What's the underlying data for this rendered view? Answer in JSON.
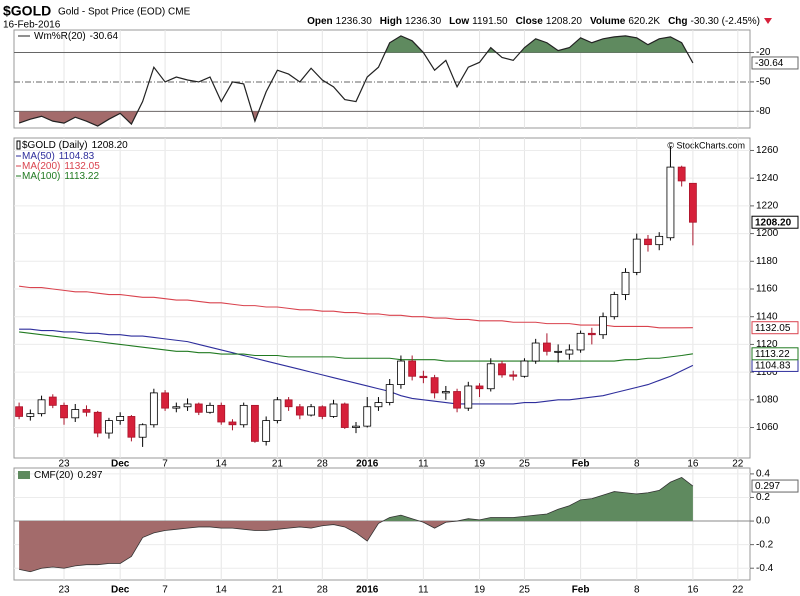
{
  "chart_data": [
    {
      "type": "line",
      "name": "Wm%R(20)",
      "ylim": [
        -97,
        3
      ],
      "yticks": [
        -20,
        -50,
        -80
      ],
      "color": "#222222",
      "fill_above": "#5f8a5f",
      "fill_below": "#a36b6b",
      "values": [
        -92,
        -88,
        -85,
        -90,
        -92,
        -86,
        -90,
        -95,
        -88,
        -82,
        -93,
        -70,
        -35,
        -50,
        -45,
        -48,
        -50,
        -45,
        -70,
        -50,
        -52,
        -90,
        -60,
        -38,
        -42,
        -50,
        -36,
        -48,
        -55,
        -68,
        -70,
        -45,
        -35,
        -10,
        -3,
        -8,
        -20,
        -38,
        -28,
        -55,
        -35,
        -30,
        -15,
        -25,
        -28,
        -15,
        -6,
        -10,
        -18,
        -15,
        -5,
        -10,
        -6,
        -4,
        -3,
        -5,
        -12,
        -6,
        -4,
        -10,
        -30.64,
        null,
        null,
        null,
        null,
        null
      ]
    },
    {
      "type": "candlestick",
      "title": "$GOLD",
      "subtitle": "Gold - Spot Price (EOD) CME",
      "date": "16-Feb-2016",
      "stats": [
        {
          "label": "Open",
          "value": "1236.30"
        },
        {
          "label": "High",
          "value": "1236.30"
        },
        {
          "label": "Low",
          "value": "1191.50"
        },
        {
          "label": "Close",
          "value": "1208.20"
        },
        {
          "label": "Volume",
          "value": "620.2K"
        },
        {
          "label": "Chg",
          "value": "-30.30 (-2.45%)"
        }
      ],
      "watermark": "© StockCharts.com",
      "name": "$GOLD (Daily)",
      "last_label": "1208.20",
      "categories": [
        null,
        null,
        null,
        null,
        "23",
        null,
        null,
        null,
        null,
        "Dec",
        null,
        null,
        null,
        "7",
        null,
        null,
        null,
        null,
        "14",
        null,
        null,
        null,
        null,
        "21",
        null,
        null,
        null,
        "28",
        null,
        null,
        null,
        "2016",
        null,
        null,
        null,
        null,
        "11",
        null,
        null,
        null,
        null,
        "19",
        null,
        null,
        null,
        "25",
        null,
        null,
        null,
        null,
        "Feb",
        null,
        null,
        null,
        null,
        "8",
        null,
        null,
        null,
        null,
        "16",
        null,
        null,
        null,
        "22",
        null
      ],
      "open": [
        1075,
        1068,
        1070,
        1082,
        1076,
        1067,
        1073,
        1071,
        1056,
        1065,
        1068,
        1053,
        1062,
        1085,
        1074,
        1075,
        1077,
        1071,
        1076,
        1064,
        1062,
        1076,
        1050,
        1065,
        1080,
        1075,
        1069,
        1075,
        1068,
        1077,
        1060,
        1061,
        1075,
        1078,
        1091,
        1108,
        1097,
        1096,
        1085,
        1086,
        1074,
        1090,
        1088,
        1106,
        1098,
        1097,
        1108,
        1121,
        1115,
        1113,
        1116,
        1128,
        1127,
        1140,
        1156,
        1172,
        1196,
        1192,
        1197,
        1248,
        1236.3,
        null,
        null,
        null,
        null,
        null
      ],
      "high": [
        1078,
        1073,
        1083,
        1084,
        1078,
        1077,
        1076,
        1072,
        1067,
        1071,
        1069,
        1063,
        1088,
        1087,
        1078,
        1081,
        1078,
        1078,
        1078,
        1066,
        1078,
        1076,
        1068,
        1082,
        1082,
        1077,
        1077,
        1076,
        1080,
        1078,
        1064,
        1082,
        1082,
        1095,
        1112,
        1112,
        1101,
        1098,
        1090,
        1088,
        1093,
        1092,
        1110,
        1108,
        1101,
        1110,
        1124,
        1128,
        1120,
        1120,
        1130,
        1132,
        1143,
        1158,
        1175,
        1200,
        1199,
        1201,
        1263,
        1249,
        1236.3,
        null,
        null,
        null,
        null,
        null
      ],
      "low": [
        1066,
        1065,
        1068,
        1074,
        1062,
        1064,
        1068,
        1053,
        1052,
        1062,
        1050,
        1046,
        1060,
        1072,
        1071,
        1072,
        1069,
        1070,
        1062,
        1058,
        1060,
        1049,
        1047,
        1063,
        1072,
        1066,
        1068,
        1066,
        1067,
        1059,
        1056,
        1060,
        1072,
        1076,
        1088,
        1094,
        1092,
        1081,
        1080,
        1071,
        1072,
        1082,
        1086,
        1096,
        1094,
        1096,
        1106,
        1112,
        1107,
        1109,
        1114,
        1120,
        1124,
        1138,
        1152,
        1170,
        1187,
        1188,
        1195,
        1234,
        1191.5,
        null,
        null,
        null,
        null,
        null
      ],
      "close": [
        1068,
        1070,
        1080,
        1076,
        1067,
        1073,
        1071,
        1056,
        1065,
        1068,
        1053,
        1062,
        1085,
        1074,
        1075,
        1077,
        1071,
        1076,
        1064,
        1062,
        1076,
        1050,
        1065,
        1080,
        1075,
        1069,
        1075,
        1068,
        1077,
        1060,
        1061,
        1075,
        1078,
        1091,
        1108,
        1097,
        1096,
        1085,
        1086,
        1074,
        1090,
        1088,
        1106,
        1098,
        1097,
        1108,
        1121,
        1115,
        1115,
        1116,
        1128,
        1127,
        1140,
        1156,
        1172,
        1196,
        1192,
        1198,
        1248,
        1238,
        1208.2,
        null,
        null,
        null,
        null,
        null
      ],
      "up_color": "#ffffff",
      "down_color": "#d6203a",
      "series": [
        {
          "name": "MA(50)",
          "color": "#2e2e9c",
          "values": [
            1131,
            1131,
            1130,
            1130,
            1129,
            1129,
            1128,
            1128,
            1127,
            1127,
            1126,
            1126,
            1125,
            1124,
            1123,
            1122,
            1120,
            1118,
            1116,
            1114,
            1112,
            1110,
            1108,
            1106,
            1104,
            1102,
            1100,
            1098,
            1096,
            1094,
            1092,
            1090,
            1088,
            1086,
            1083,
            1081,
            1080,
            1079,
            1078,
            1077,
            1077,
            1077,
            1077,
            1077,
            1077,
            1078,
            1078,
            1079,
            1080,
            1080,
            1081,
            1082,
            1083,
            1085,
            1087,
            1089,
            1091,
            1094,
            1097,
            1101,
            1104.83,
            null,
            null,
            null,
            null,
            null
          ]
        },
        {
          "name": "MA(200)",
          "color": "#d9434e",
          "values": [
            1162,
            1161,
            1161,
            1160,
            1159,
            1158,
            1158,
            1157,
            1156,
            1156,
            1155,
            1154,
            1154,
            1153,
            1152,
            1152,
            1151,
            1150,
            1150,
            1149,
            1148,
            1148,
            1147,
            1147,
            1146,
            1145,
            1145,
            1144,
            1144,
            1143,
            1143,
            1142,
            1142,
            1141,
            1141,
            1140,
            1140,
            1139,
            1139,
            1138,
            1138,
            1137,
            1137,
            1137,
            1136,
            1136,
            1136,
            1135,
            1135,
            1135,
            1134,
            1134,
            1134,
            1133,
            1133,
            1133,
            1133,
            1132,
            1132,
            1132,
            1132.05,
            null,
            null,
            null,
            null,
            null
          ]
        },
        {
          "name": "MA(100)",
          "color": "#217a21",
          "values": [
            1129,
            1128,
            1127,
            1126,
            1125,
            1124,
            1123,
            1122,
            1121,
            1120,
            1119,
            1118,
            1117,
            1116,
            1115,
            1115,
            1114,
            1114,
            1113,
            1113,
            1113,
            1112,
            1112,
            1112,
            1111,
            1111,
            1111,
            1111,
            1111,
            1110,
            1110,
            1110,
            1110,
            1110,
            1109,
            1109,
            1109,
            1109,
            1108,
            1108,
            1108,
            1108,
            1108,
            1108,
            1108,
            1108,
            1108,
            1108,
            1108,
            1108,
            1108,
            1108,
            1108,
            1108,
            1109,
            1109,
            1110,
            1110,
            1111,
            1112,
            1113.22,
            null,
            null,
            null,
            null,
            null
          ]
        }
      ],
      "ylim": [
        1038,
        1269
      ],
      "yticks": [
        1060,
        1080,
        1100,
        1120,
        1140,
        1160,
        1180,
        1200,
        1220,
        1240,
        1260
      ],
      "grid": true
    },
    {
      "type": "area",
      "name": "CMF(20)",
      "ylim": [
        -0.5,
        0.45
      ],
      "yticks": [
        0.4,
        0.2,
        {
          "value": 0,
          "label": "0.0"
        },
        -0.2,
        -0.4
      ],
      "color": "#333333",
      "fill_above": "#5f8a5f",
      "fill_below": "#a36b6b",
      "values": [
        -0.41,
        -0.43,
        -0.4,
        -0.39,
        -0.4,
        -0.38,
        -0.37,
        -0.37,
        -0.36,
        -0.36,
        -0.3,
        -0.14,
        -0.1,
        -0.08,
        -0.07,
        -0.06,
        -0.05,
        -0.05,
        -0.06,
        -0.06,
        -0.07,
        -0.08,
        -0.08,
        -0.07,
        -0.06,
        -0.05,
        -0.06,
        -0.04,
        -0.03,
        -0.05,
        -0.1,
        -0.17,
        -0.02,
        0.03,
        0.05,
        0.02,
        -0.01,
        -0.06,
        -0.01,
        0.0,
        0.02,
        0.01,
        0.03,
        0.03,
        0.03,
        0.04,
        0.05,
        0.06,
        0.1,
        0.13,
        0.18,
        0.19,
        0.22,
        0.25,
        0.24,
        0.23,
        0.24,
        0.26,
        0.33,
        0.37,
        0.297,
        null,
        null,
        null,
        null,
        null
      ]
    }
  ]
}
